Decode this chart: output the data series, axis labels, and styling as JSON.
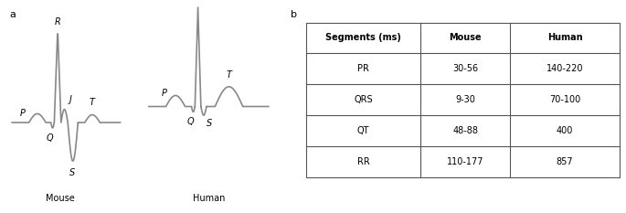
{
  "label_a": "a",
  "label_b": "b",
  "mouse_label": "Mouse",
  "human_label": "Human",
  "table_headers": [
    "Segments (ms)",
    "Mouse",
    "Human"
  ],
  "table_rows": [
    [
      "PR",
      "30-56",
      "140-220"
    ],
    [
      "QRS",
      "9-30",
      "70-100"
    ],
    [
      "QT",
      "48-88",
      "400"
    ],
    [
      "RR",
      "110-177",
      "857"
    ]
  ],
  "ecg_color": "#888888",
  "ecg_linewidth": 1.2,
  "background_color": "#ffffff",
  "table_border_color": "#555555",
  "fontsize_table": 7,
  "fontsize_anno": 7
}
